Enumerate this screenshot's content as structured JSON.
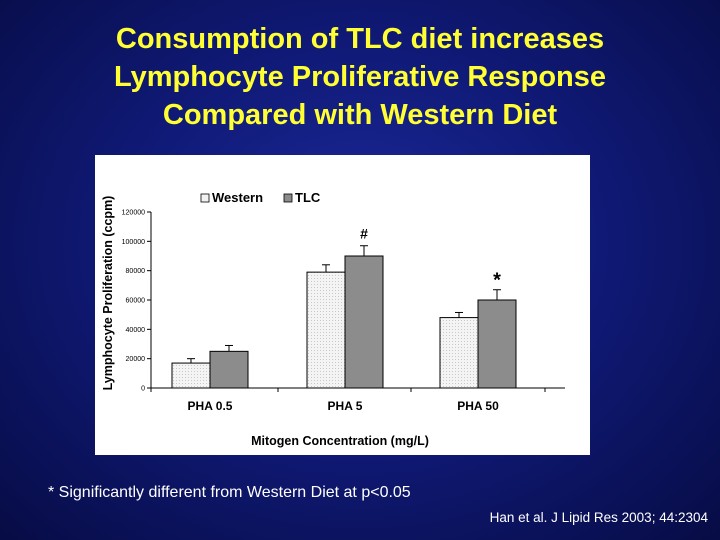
{
  "slide": {
    "title_lines": [
      "Consumption of TLC diet increases",
      "Lymphocyte Proliferative Response",
      "Compared with Western Diet"
    ],
    "footnote": "* Significantly different from Western Diet at p<0.05",
    "citation": "Han et al. J Lipid Res 2003; 44:2304"
  },
  "chart_data": {
    "type": "bar",
    "title": "",
    "xlabel": "Mitogen Concentration (mg/L)",
    "ylabel": "Lymphocyte Proliferation (ccpm)",
    "categories": [
      "PHA 0.5",
      "PHA 5",
      "PHA 50"
    ],
    "series": [
      {
        "name": "Western",
        "values": [
          17000,
          79000,
          48000
        ],
        "errors": [
          3000,
          5000,
          3500
        ],
        "color": "#f2f2f2"
      },
      {
        "name": "TLC",
        "values": [
          25000,
          90000,
          60000
        ],
        "errors": [
          4000,
          7000,
          7000
        ],
        "color": "#8c8c8c"
      }
    ],
    "annotations": [
      {
        "category": "PHA 5",
        "series": "TLC",
        "text": "#"
      },
      {
        "category": "PHA 50",
        "series": "TLC",
        "text": "*"
      }
    ],
    "ylim": [
      0,
      120000
    ],
    "yticks": [
      0,
      20000,
      40000,
      60000,
      80000,
      100000,
      120000
    ],
    "ytick_labels": [
      "0",
      "20000",
      "40000",
      "60000",
      "80000",
      "100000",
      "120000"
    ],
    "legend": "top-left",
    "grid": false
  }
}
